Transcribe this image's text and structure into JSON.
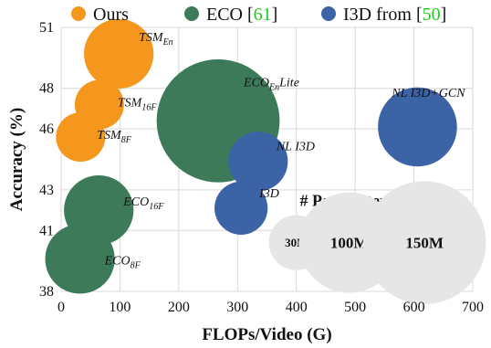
{
  "chart_data": {
    "type": "scatter",
    "xlabel": "FLOPs/Video (G)",
    "ylabel": "Accuracy (%)",
    "xlim": [
      0,
      700
    ],
    "ylim": [
      38,
      51
    ],
    "x_ticks": [
      "0",
      "100",
      "200",
      "300",
      "400",
      "500",
      "600",
      "700"
    ],
    "y_ticks": [
      "38",
      "41",
      "43",
      "46",
      "48",
      "51"
    ],
    "grid": true,
    "legend_position": "top",
    "legend": [
      {
        "name": "Ours",
        "ref": "",
        "color": "#f5971d"
      },
      {
        "name": "ECO [",
        "ref": "61",
        "suffix": "]",
        "color": "#3c7a5a"
      },
      {
        "name": "I3D from [",
        "ref": "50",
        "suffix": "]",
        "color": "#3b63a6"
      }
    ],
    "series": [
      {
        "name": "Ours",
        "color": "#f5971d",
        "points": [
          {
            "label": "TSM",
            "sub": "8F",
            "x": 33,
            "y": 45.6,
            "params": 24
          },
          {
            "label": "TSM",
            "sub": "16F",
            "x": 65,
            "y": 47.2,
            "params": 24
          },
          {
            "label": "TSM",
            "sub": "En",
            "x": 98,
            "y": 49.7,
            "params": 48
          }
        ]
      },
      {
        "name": "ECO",
        "color": "#3c7a5a",
        "points": [
          {
            "label": "ECO",
            "sub": "8F",
            "x": 32,
            "y": 39.6,
            "params": 48
          },
          {
            "label": "ECO",
            "sub": "16F",
            "x": 64,
            "y": 42.0,
            "params": 48
          },
          {
            "label": "ECO",
            "sub": "En",
            "suffix": "Lite",
            "x": 267,
            "y": 46.4,
            "params": 150
          }
        ]
      },
      {
        "name": "I3D",
        "color": "#3b63a6",
        "points": [
          {
            "label": "I3D",
            "x": 306,
            "y": 42.1,
            "params": 28
          },
          {
            "label": "NL I3D",
            "x": 335,
            "y": 44.4,
            "params": 35
          },
          {
            "label": "NL I3D+GCN",
            "x": 606,
            "y": 46.1,
            "params": 62
          }
        ]
      }
    ],
    "size_legend": {
      "title": "# Parameters",
      "items": [
        {
          "label": "30M",
          "params": 30,
          "x": 400
        },
        {
          "label": "100M",
          "params": 100,
          "x": 490
        },
        {
          "label": "150M",
          "params": 150,
          "x": 618
        }
      ]
    }
  }
}
